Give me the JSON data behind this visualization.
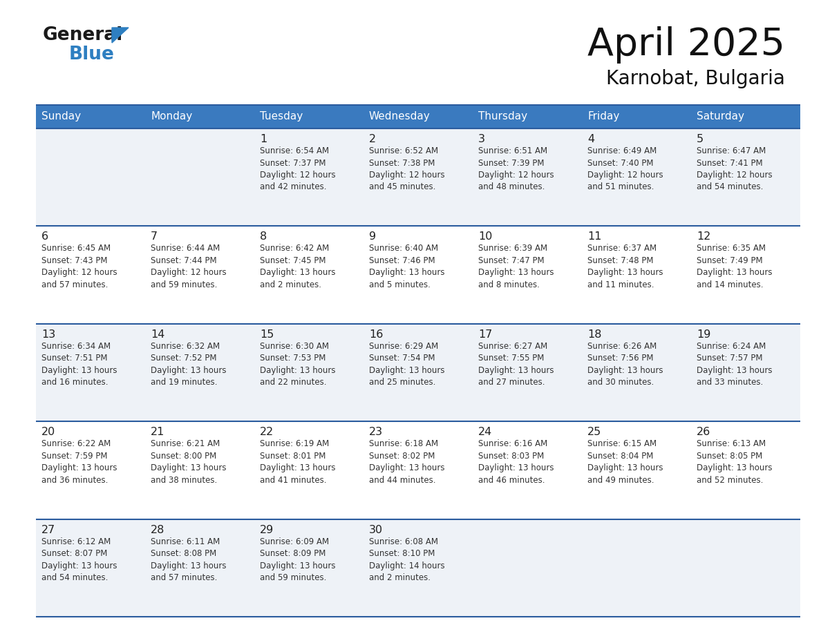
{
  "title": "April 2025",
  "subtitle": "Karnobat, Bulgaria",
  "header_bg": "#3a7abf",
  "header_text": "#ffffff",
  "days_of_week": [
    "Sunday",
    "Monday",
    "Tuesday",
    "Wednesday",
    "Thursday",
    "Friday",
    "Saturday"
  ],
  "row_bg_even": "#eef2f7",
  "row_bg_odd": "#ffffff",
  "cell_border_color": "#2b5c9e",
  "day_num_color": "#222222",
  "cell_text_color": "#333333",
  "title_color": "#111111",
  "subtitle_color": "#111111",
  "logo_black": "#1a1a1a",
  "logo_blue": "#2e7fc1",
  "weeks": [
    [
      {
        "day": "",
        "info": ""
      },
      {
        "day": "",
        "info": ""
      },
      {
        "day": "1",
        "info": "Sunrise: 6:54 AM\nSunset: 7:37 PM\nDaylight: 12 hours\nand 42 minutes."
      },
      {
        "day": "2",
        "info": "Sunrise: 6:52 AM\nSunset: 7:38 PM\nDaylight: 12 hours\nand 45 minutes."
      },
      {
        "day": "3",
        "info": "Sunrise: 6:51 AM\nSunset: 7:39 PM\nDaylight: 12 hours\nand 48 minutes."
      },
      {
        "day": "4",
        "info": "Sunrise: 6:49 AM\nSunset: 7:40 PM\nDaylight: 12 hours\nand 51 minutes."
      },
      {
        "day": "5",
        "info": "Sunrise: 6:47 AM\nSunset: 7:41 PM\nDaylight: 12 hours\nand 54 minutes."
      }
    ],
    [
      {
        "day": "6",
        "info": "Sunrise: 6:45 AM\nSunset: 7:43 PM\nDaylight: 12 hours\nand 57 minutes."
      },
      {
        "day": "7",
        "info": "Sunrise: 6:44 AM\nSunset: 7:44 PM\nDaylight: 12 hours\nand 59 minutes."
      },
      {
        "day": "8",
        "info": "Sunrise: 6:42 AM\nSunset: 7:45 PM\nDaylight: 13 hours\nand 2 minutes."
      },
      {
        "day": "9",
        "info": "Sunrise: 6:40 AM\nSunset: 7:46 PM\nDaylight: 13 hours\nand 5 minutes."
      },
      {
        "day": "10",
        "info": "Sunrise: 6:39 AM\nSunset: 7:47 PM\nDaylight: 13 hours\nand 8 minutes."
      },
      {
        "day": "11",
        "info": "Sunrise: 6:37 AM\nSunset: 7:48 PM\nDaylight: 13 hours\nand 11 minutes."
      },
      {
        "day": "12",
        "info": "Sunrise: 6:35 AM\nSunset: 7:49 PM\nDaylight: 13 hours\nand 14 minutes."
      }
    ],
    [
      {
        "day": "13",
        "info": "Sunrise: 6:34 AM\nSunset: 7:51 PM\nDaylight: 13 hours\nand 16 minutes."
      },
      {
        "day": "14",
        "info": "Sunrise: 6:32 AM\nSunset: 7:52 PM\nDaylight: 13 hours\nand 19 minutes."
      },
      {
        "day": "15",
        "info": "Sunrise: 6:30 AM\nSunset: 7:53 PM\nDaylight: 13 hours\nand 22 minutes."
      },
      {
        "day": "16",
        "info": "Sunrise: 6:29 AM\nSunset: 7:54 PM\nDaylight: 13 hours\nand 25 minutes."
      },
      {
        "day": "17",
        "info": "Sunrise: 6:27 AM\nSunset: 7:55 PM\nDaylight: 13 hours\nand 27 minutes."
      },
      {
        "day": "18",
        "info": "Sunrise: 6:26 AM\nSunset: 7:56 PM\nDaylight: 13 hours\nand 30 minutes."
      },
      {
        "day": "19",
        "info": "Sunrise: 6:24 AM\nSunset: 7:57 PM\nDaylight: 13 hours\nand 33 minutes."
      }
    ],
    [
      {
        "day": "20",
        "info": "Sunrise: 6:22 AM\nSunset: 7:59 PM\nDaylight: 13 hours\nand 36 minutes."
      },
      {
        "day": "21",
        "info": "Sunrise: 6:21 AM\nSunset: 8:00 PM\nDaylight: 13 hours\nand 38 minutes."
      },
      {
        "day": "22",
        "info": "Sunrise: 6:19 AM\nSunset: 8:01 PM\nDaylight: 13 hours\nand 41 minutes."
      },
      {
        "day": "23",
        "info": "Sunrise: 6:18 AM\nSunset: 8:02 PM\nDaylight: 13 hours\nand 44 minutes."
      },
      {
        "day": "24",
        "info": "Sunrise: 6:16 AM\nSunset: 8:03 PM\nDaylight: 13 hours\nand 46 minutes."
      },
      {
        "day": "25",
        "info": "Sunrise: 6:15 AM\nSunset: 8:04 PM\nDaylight: 13 hours\nand 49 minutes."
      },
      {
        "day": "26",
        "info": "Sunrise: 6:13 AM\nSunset: 8:05 PM\nDaylight: 13 hours\nand 52 minutes."
      }
    ],
    [
      {
        "day": "27",
        "info": "Sunrise: 6:12 AM\nSunset: 8:07 PM\nDaylight: 13 hours\nand 54 minutes."
      },
      {
        "day": "28",
        "info": "Sunrise: 6:11 AM\nSunset: 8:08 PM\nDaylight: 13 hours\nand 57 minutes."
      },
      {
        "day": "29",
        "info": "Sunrise: 6:09 AM\nSunset: 8:09 PM\nDaylight: 13 hours\nand 59 minutes."
      },
      {
        "day": "30",
        "info": "Sunrise: 6:08 AM\nSunset: 8:10 PM\nDaylight: 14 hours\nand 2 minutes."
      },
      {
        "day": "",
        "info": ""
      },
      {
        "day": "",
        "info": ""
      },
      {
        "day": "",
        "info": ""
      }
    ]
  ]
}
